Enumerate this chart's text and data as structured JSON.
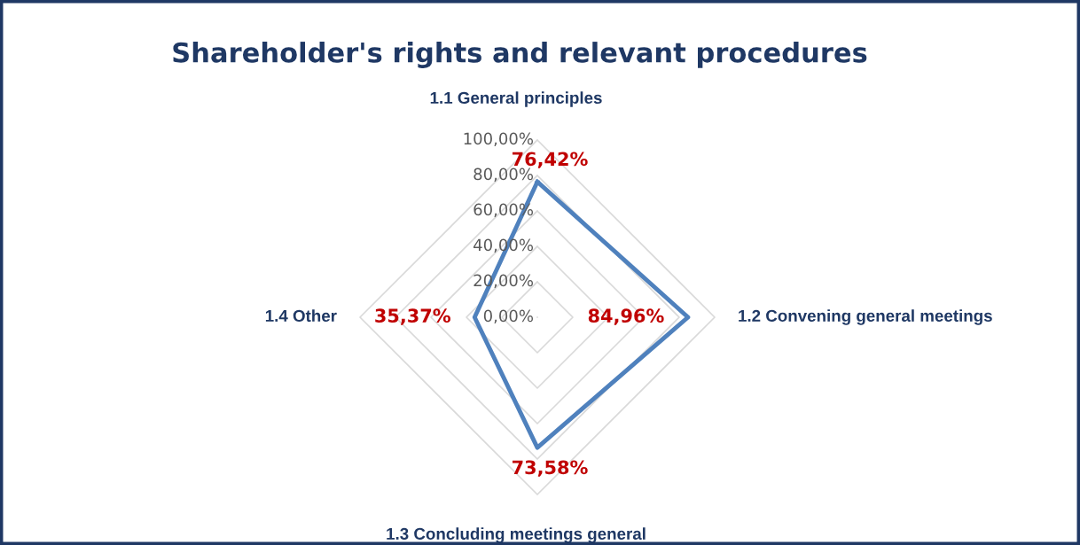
{
  "chart_data": {
    "type": "radar",
    "title": "Shareholder's rights and relevant procedures",
    "categories": [
      "1.1 General principles",
      "1.2 Convening general meetings",
      "1.3 Concluding meetings general",
      "1.4 Other"
    ],
    "series": [
      {
        "color": "#4f81bd",
        "values": [
          76.42,
          84.96,
          73.58,
          35.37
        ],
        "value_labels": [
          "76,42%",
          "84,96%",
          "73,58%",
          "35,37%"
        ]
      }
    ],
    "ylim": [
      0,
      100
    ],
    "yticks": [
      {
        "value": 0,
        "label": "0,00%"
      },
      {
        "value": 20,
        "label": "20,00%"
      },
      {
        "value": 40,
        "label": "40,00%"
      },
      {
        "value": 60,
        "label": "60,00%"
      },
      {
        "value": 80,
        "label": "80,00%"
      },
      {
        "value": 100,
        "label": "100,00%"
      }
    ],
    "grid": true,
    "legend": false,
    "marker": "none",
    "line_style": "solid"
  }
}
